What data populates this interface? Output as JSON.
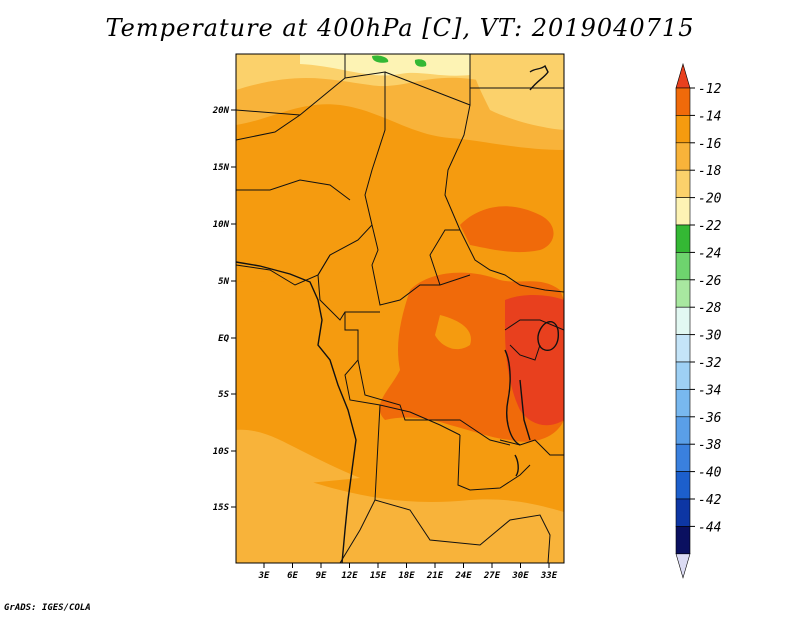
{
  "title": "Temperature at 400hPa [C], VT: 2019040715",
  "credit": "GrADS: IGES/COLA",
  "map": {
    "lat_ticks": [
      "20N",
      "15N",
      "10N",
      "5N",
      "EQ",
      "5S",
      "10S",
      "15S"
    ],
    "lon_ticks": [
      "3E",
      "6E",
      "9E",
      "12E",
      "15E",
      "18E",
      "21E",
      "24E",
      "27E",
      "30E",
      "33E"
    ]
  },
  "colorbar": {
    "labels": [
      "-12",
      "-14",
      "-16",
      "-18",
      "-20",
      "-22",
      "-24",
      "-26",
      "-28",
      "-30",
      "-32",
      "-34",
      "-36",
      "-38",
      "-40",
      "-42",
      "-44"
    ],
    "colors": [
      "#e8401e",
      "#f06a0a",
      "#f59b0f",
      "#f8b33a",
      "#fbd16b",
      "#fdf3b4",
      "#34b834",
      "#6ed46e",
      "#a8e8a0",
      "#e2f8f2",
      "#c4e4f8",
      "#9ed0f4",
      "#78b8ef",
      "#5a9fe8",
      "#3a80de",
      "#1c5fcc",
      "#0d36a4",
      "#0a1060",
      "#dcdcf4"
    ]
  }
}
